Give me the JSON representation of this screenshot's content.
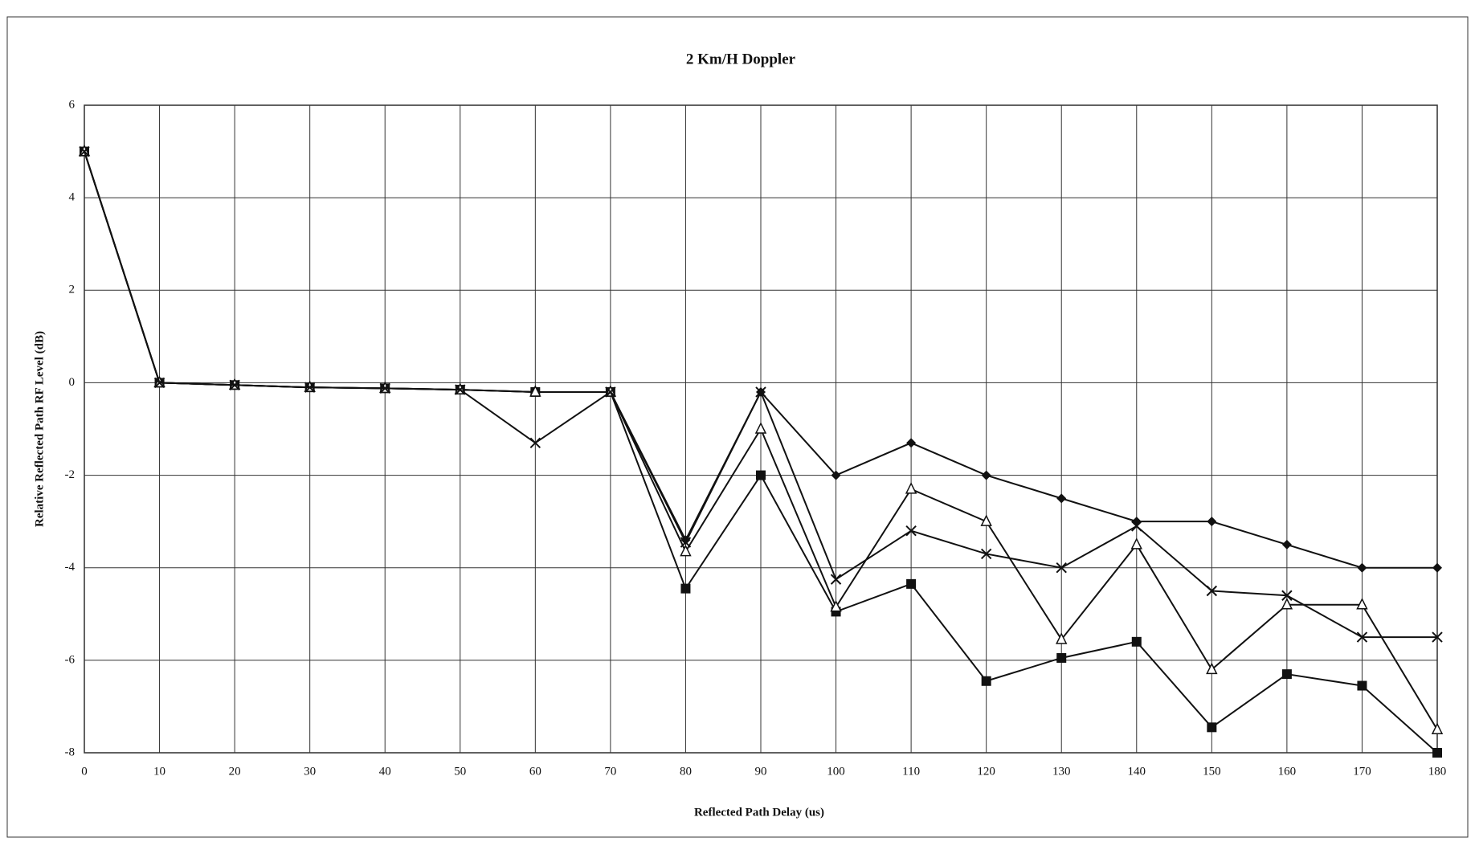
{
  "chart_data": {
    "type": "line",
    "title": "2 Km/H Doppler",
    "xlabel": "Reflected Path Delay (us)",
    "ylabel": "Relative Reflected Path RF Level (dB)",
    "x": [
      0,
      10,
      20,
      30,
      40,
      50,
      60,
      70,
      80,
      90,
      100,
      110,
      120,
      130,
      140,
      150,
      160,
      170,
      180
    ],
    "xlim": [
      0,
      180
    ],
    "xticks": [
      0,
      10,
      20,
      30,
      40,
      50,
      60,
      70,
      80,
      90,
      100,
      110,
      120,
      130,
      140,
      150,
      160,
      170,
      180
    ],
    "ylim": [
      -8,
      6
    ],
    "yticks": [
      -8,
      -6,
      -4,
      -2,
      0,
      2,
      4,
      6
    ],
    "grid": true,
    "series": [
      {
        "marker": "diamond",
        "color": "#111111",
        "values": [
          5,
          0,
          -0.05,
          -0.1,
          -0.12,
          -0.15,
          -0.2,
          -0.2,
          -3.4,
          -0.2,
          -2.0,
          -1.3,
          -2.0,
          -2.5,
          -3.0,
          -3.0,
          -3.5,
          -4.0,
          -4.0
        ]
      },
      {
        "marker": "square",
        "color": "#111111",
        "values": [
          5,
          0,
          -0.05,
          -0.1,
          -0.12,
          -0.15,
          -0.2,
          -0.2,
          -4.45,
          -2.0,
          -4.95,
          -4.35,
          -6.45,
          -5.95,
          -5.6,
          -7.45,
          -6.3,
          -6.55,
          -8.0
        ]
      },
      {
        "marker": "triangle",
        "color": "#111111",
        "values": [
          5,
          0,
          -0.05,
          -0.1,
          -0.12,
          -0.15,
          -0.2,
          -0.2,
          -3.65,
          -1.0,
          -4.85,
          -2.3,
          -3.0,
          -5.55,
          -3.5,
          -6.2,
          -4.8,
          -4.8,
          -7.5
        ]
      },
      {
        "marker": "x",
        "color": "#111111",
        "values": [
          5,
          0,
          -0.05,
          -0.1,
          -0.12,
          -0.15,
          -1.3,
          -0.2,
          -3.45,
          -0.2,
          -4.25,
          -3.2,
          -3.7,
          -4.0,
          -3.1,
          -4.5,
          -4.6,
          -5.5,
          -5.5
        ]
      }
    ]
  }
}
